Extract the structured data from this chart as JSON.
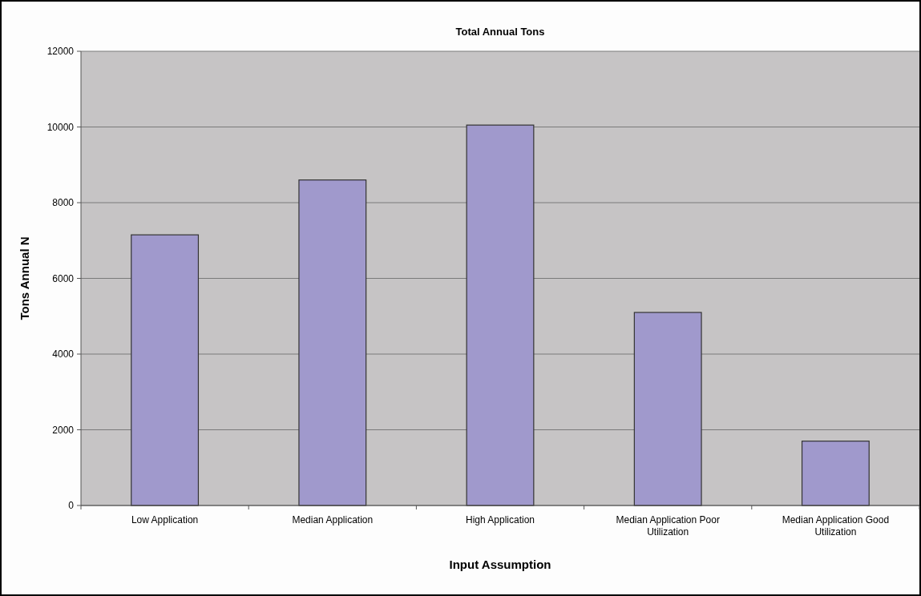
{
  "chart_data": {
    "type": "bar",
    "title": "Total Annual Tons",
    "xlabel": "Input Assumption",
    "ylabel": "Tons Annual N",
    "categories": [
      "Low Application",
      "Median Application",
      "High Application",
      "Median Application Poor Utilization",
      "Median Application Good Utilization"
    ],
    "values": [
      7150,
      8600,
      10050,
      5100,
      1700
    ],
    "color": "#a099cc",
    "ylim": [
      0,
      12000
    ],
    "yticks": [
      0,
      2000,
      4000,
      6000,
      8000,
      10000,
      12000
    ],
    "grid": "y"
  }
}
